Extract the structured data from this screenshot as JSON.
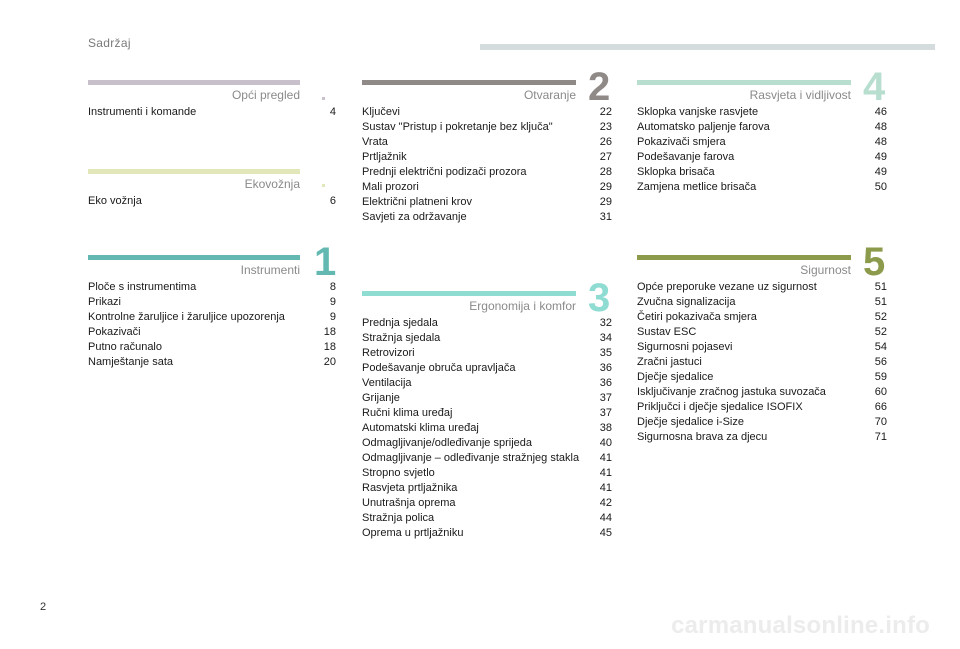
{
  "header": {
    "title": "Sadržaj",
    "page_number": "2",
    "watermark": "carmanualsonline.info"
  },
  "colors": {
    "general": "#c8c1cb",
    "eco": "#e1e7b8",
    "instruments": "#63b9b2",
    "opening": "#8f8a88",
    "ergonomics": "#8fdcd3",
    "lighting": "#b8ded0",
    "safety": "#8c9a4c"
  },
  "sections": {
    "general": {
      "title": "Opći pregled",
      "num": "",
      "items": [
        {
          "t": "Instrumenti i komande",
          "p": "4"
        }
      ]
    },
    "eco": {
      "title": "Ekovožnja",
      "num": "",
      "items": [
        {
          "t": "Eko vožnja",
          "p": "6"
        }
      ]
    },
    "instruments": {
      "title": "Instrumenti",
      "num": "1",
      "items": [
        {
          "t": "Ploče s instrumentima",
          "p": "8"
        },
        {
          "t": "Prikazi",
          "p": "9"
        },
        {
          "t": "Kontrolne žaruljice i žaruljice upozorenja",
          "p": "9"
        },
        {
          "t": "Pokazivači",
          "p": "18"
        },
        {
          "t": "Putno računalo",
          "p": "18"
        },
        {
          "t": "Namještanje sata",
          "p": "20"
        }
      ]
    },
    "opening": {
      "title": "Otvaranje",
      "num": "2",
      "items": [
        {
          "t": "Ključevi",
          "p": "22"
        },
        {
          "t": "Sustav \"Pristup i pokretanje bez ključa\"",
          "p": "23"
        },
        {
          "t": "Vrata",
          "p": "26"
        },
        {
          "t": "Prtljažnik",
          "p": "27"
        },
        {
          "t": "Prednji električni podizači prozora",
          "p": "28"
        },
        {
          "t": "Mali prozori",
          "p": "29"
        },
        {
          "t": "Električni platneni krov",
          "p": "29"
        },
        {
          "t": "Savjeti za održavanje",
          "p": "31"
        }
      ]
    },
    "ergonomics": {
      "title": "Ergonomija i komfor",
      "num": "3",
      "items": [
        {
          "t": "Prednja sjedala",
          "p": "32"
        },
        {
          "t": "Stražnja sjedala",
          "p": "34"
        },
        {
          "t": "Retrovizori",
          "p": "35"
        },
        {
          "t": "Podešavanje obruča upravljača",
          "p": "36"
        },
        {
          "t": "Ventilacija",
          "p": "36"
        },
        {
          "t": "Grijanje",
          "p": "37"
        },
        {
          "t": "Ručni klima uređaj",
          "p": "37"
        },
        {
          "t": "Automatski klima uređaj",
          "p": "38"
        },
        {
          "t": "Odmagljivanje/odleđivanje sprijeda",
          "p": "40"
        },
        {
          "t": "Odmagljivanje – odleđivanje stražnjeg stakla",
          "p": "41"
        },
        {
          "t": "Stropno svjetlo",
          "p": "41"
        },
        {
          "t": "Rasvjeta prtljažnika",
          "p": "41"
        },
        {
          "t": "Unutrašnja oprema",
          "p": "42"
        },
        {
          "t": "Stražnja polica",
          "p": "44"
        },
        {
          "t": "Oprema u prtljažniku",
          "p": "45"
        }
      ]
    },
    "lighting": {
      "title": "Rasvjeta i vidljivost",
      "num": "4",
      "items": [
        {
          "t": "Sklopka vanjske rasvjete",
          "p": "46"
        },
        {
          "t": "Automatsko paljenje farova",
          "p": "48"
        },
        {
          "t": "Pokazivači smjera",
          "p": "48"
        },
        {
          "t": "Podešavanje farova",
          "p": "49"
        },
        {
          "t": "Sklopka brisača",
          "p": "49"
        },
        {
          "t": "Zamjena metlice brisača",
          "p": "50"
        }
      ]
    },
    "safety": {
      "title": "Sigurnost",
      "num": "5",
      "items": [
        {
          "t": "Opće preporuke vezane uz sigurnost",
          "p": "51"
        },
        {
          "t": "Zvučna signalizacija",
          "p": "51"
        },
        {
          "t": "Četiri pokazivača smjera",
          "p": "52"
        },
        {
          "t": "Sustav ESC",
          "p": "52"
        },
        {
          "t": "Sigurnosni pojasevi",
          "p": "54"
        },
        {
          "t": "Zračni jastuci",
          "p": "56"
        },
        {
          "t": "Dječje sjedalice",
          "p": "59"
        },
        {
          "t": "Isključivanje zračnog jastuka suvozača",
          "p": "60"
        },
        {
          "t": "Priključci i dječje sjedalice ISOFIX",
          "p": "66"
        },
        {
          "t": "Dječje sjedalice i-Size",
          "p": "70"
        },
        {
          "t": "Sigurnosna brava za djecu",
          "p": "71"
        }
      ]
    }
  }
}
